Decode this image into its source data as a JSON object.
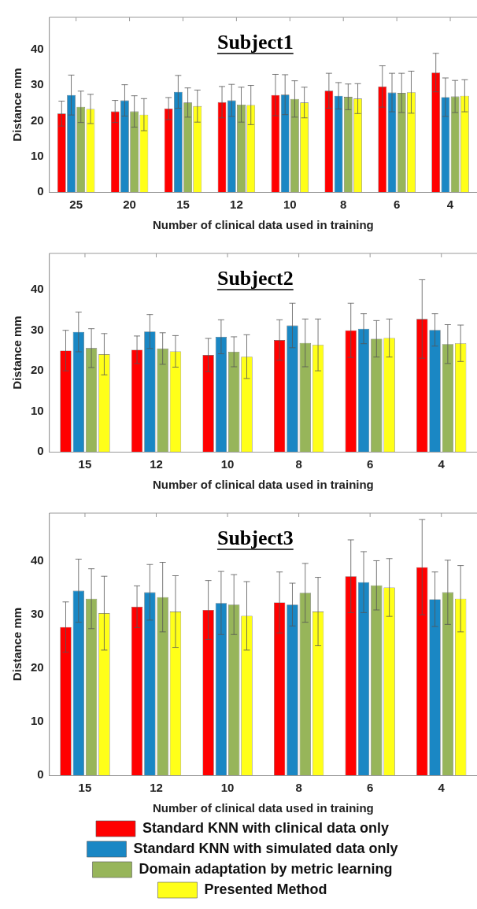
{
  "chart_data": [
    {
      "type": "bar",
      "title": "Subject1",
      "xlabel": "Number of clinical data used in training",
      "ylabel": "Distance mm",
      "categories": [
        "25",
        "20",
        "15",
        "12",
        "10",
        "8",
        "6",
        "4"
      ],
      "ylim": [
        0,
        49
      ],
      "yticks": [
        0,
        10,
        20,
        30,
        40
      ],
      "grid": false,
      "legend": false,
      "series": [
        {
          "color": "#ff0000",
          "values": [
            22.0,
            22.6,
            23.4,
            25.2,
            27.2,
            28.4,
            29.6,
            33.5
          ],
          "errors": [
            3.5,
            3.1,
            3.1,
            4.4,
            5.8,
            4.9,
            5.8,
            5.4
          ]
        },
        {
          "color": "#1a87c4",
          "values": [
            27.2,
            25.7,
            28.1,
            25.7,
            27.3,
            27.0,
            27.9,
            26.6
          ],
          "errors": [
            5.6,
            4.4,
            4.6,
            4.5,
            5.6,
            3.7,
            5.4,
            5.4
          ]
        },
        {
          "color": "#97b55a",
          "values": [
            23.9,
            22.6,
            25.1,
            24.5,
            26.1,
            26.7,
            27.8,
            26.8
          ],
          "errors": [
            4.4,
            4.4,
            4.1,
            4.9,
            5.1,
            3.6,
            5.5,
            4.5
          ]
        },
        {
          "color": "#ffff19",
          "values": [
            23.3,
            21.7,
            24.1,
            24.4,
            25.1,
            26.2,
            28.0,
            27.0
          ],
          "errors": [
            4.1,
            4.5,
            4.5,
            5.5,
            4.3,
            4.2,
            5.9,
            4.5
          ]
        }
      ]
    },
    {
      "type": "bar",
      "title": "Subject2",
      "xlabel": "Number of clinical data used in training",
      "ylabel": "Distance mm",
      "categories": [
        "15",
        "12",
        "10",
        "8",
        "6",
        "4"
      ],
      "ylim": [
        0,
        49
      ],
      "yticks": [
        0,
        10,
        20,
        30,
        40
      ],
      "grid": false,
      "legend": false,
      "series": [
        {
          "color": "#ff0000",
          "values": [
            25.0,
            25.2,
            23.9,
            27.6,
            30.0,
            32.8
          ],
          "errors": [
            5.0,
            3.4,
            4.1,
            5.0,
            6.7,
            9.7
          ]
        },
        {
          "color": "#1a87c4",
          "values": [
            29.6,
            29.7,
            28.4,
            31.2,
            30.4,
            30.1
          ],
          "errors": [
            4.9,
            4.2,
            4.2,
            5.5,
            3.7,
            4.0
          ]
        },
        {
          "color": "#97b55a",
          "values": [
            25.6,
            25.5,
            24.7,
            26.9,
            27.9,
            26.6
          ],
          "errors": [
            4.8,
            3.9,
            3.7,
            5.9,
            4.5,
            4.8
          ]
        },
        {
          "color": "#ffff19",
          "values": [
            24.1,
            24.8,
            23.5,
            26.4,
            28.1,
            26.8
          ],
          "errors": [
            5.1,
            3.9,
            5.4,
            6.4,
            4.7,
            4.5
          ]
        }
      ]
    },
    {
      "type": "bar",
      "title": "Subject3",
      "xlabel": "Number of clinical data used in training",
      "ylabel": "Distance mm",
      "categories": [
        "15",
        "12",
        "10",
        "8",
        "6",
        "4"
      ],
      "ylim": [
        0,
        49
      ],
      "yticks": [
        0,
        10,
        20,
        30,
        40
      ],
      "grid": false,
      "legend": "bottom",
      "series": [
        {
          "name": "Standard KNN with clinical data only",
          "color": "#ff0000",
          "values": [
            27.7,
            31.5,
            30.9,
            32.3,
            37.2,
            38.9
          ],
          "errors": [
            4.7,
            3.9,
            5.5,
            5.7,
            6.8,
            8.9
          ]
        },
        {
          "name": "Standard KNN with simulated data only",
          "color": "#1a87c4",
          "values": [
            34.5,
            34.2,
            32.2,
            31.9,
            36.1,
            32.9
          ],
          "errors": [
            5.9,
            5.2,
            5.9,
            4.0,
            5.7,
            5.1
          ]
        },
        {
          "name": "Domain adaptation by metric learning",
          "color": "#97b55a",
          "values": [
            33.0,
            33.3,
            31.9,
            34.1,
            35.5,
            34.2
          ],
          "errors": [
            5.6,
            6.5,
            5.6,
            5.5,
            4.6,
            6.0
          ]
        },
        {
          "name": "Presented Method",
          "color": "#ffff19",
          "values": [
            30.3,
            30.6,
            29.8,
            30.6,
            35.1,
            33.0
          ],
          "errors": [
            6.9,
            6.7,
            6.4,
            6.4,
            5.4,
            6.2
          ]
        }
      ]
    }
  ]
}
